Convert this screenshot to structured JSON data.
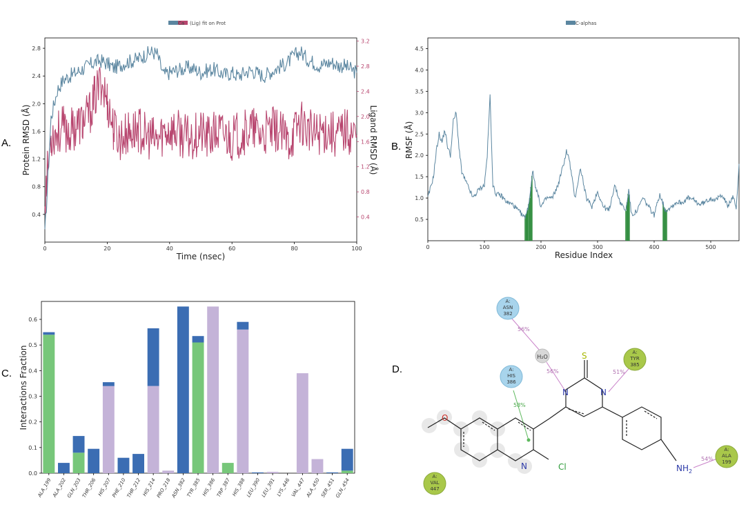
{
  "colors": {
    "protein": "#5b86a0",
    "ligand": "#b8466f",
    "rmsf_line": "#5b86a0",
    "rmsf_contact": "#2e8b3c",
    "hbond": "#77c77a",
    "hydrophobic": "#c4b3d8",
    "water_bridge": "#3b6db3",
    "polar_residue": "#a8d4ec",
    "hydrophobic_residue": "#a9c84a",
    "water": "#d8d8d8",
    "pi_line": "#5cb85c",
    "hbond_arrow": "#c982c9"
  },
  "panel_labels": {
    "a": "A.",
    "b": "B.",
    "c": "C.",
    "d": "D."
  },
  "chart_data": [
    {
      "id": "A",
      "type": "line",
      "legend": [
        "Ca",
        "(Lig) fit on Prot"
      ],
      "xlabel": "Time (nsec)",
      "ylabel": "Protein RMSD (Å)",
      "y2label": "Ligand RMSD (Å)",
      "xlim": [
        0,
        100
      ],
      "ylim": [
        0,
        2.95
      ],
      "y2lim": [
        0,
        3.25
      ],
      "xticks": [
        "0",
        "20",
        "40",
        "60",
        "80",
        "100"
      ],
      "yticks": [
        "0.4",
        "0.8",
        "1.2",
        "1.6",
        "2.0",
        "2.4",
        "2.8"
      ],
      "y2ticks": [
        "0.4",
        "0.8",
        "1.2",
        "1.6",
        "2.0",
        "2.4",
        "2.8",
        "3.2"
      ],
      "series": [
        {
          "name": "Ca",
          "axis": "left",
          "x": [
            0,
            2,
            4,
            6,
            8,
            10,
            12,
            14,
            16,
            18,
            20,
            22,
            24,
            26,
            28,
            30,
            32,
            34,
            36,
            38,
            40,
            42,
            44,
            46,
            48,
            50,
            52,
            54,
            56,
            58,
            60,
            62,
            64,
            66,
            68,
            70,
            72,
            74,
            76,
            78,
            80,
            82,
            84,
            86,
            88,
            90,
            92,
            94,
            96,
            98,
            100
          ],
          "y": [
            0.1,
            1.8,
            2.2,
            2.35,
            2.4,
            2.45,
            2.5,
            2.55,
            2.6,
            2.62,
            2.58,
            2.52,
            2.55,
            2.6,
            2.62,
            2.65,
            2.7,
            2.75,
            2.72,
            2.42,
            2.45,
            2.48,
            2.5,
            2.52,
            2.5,
            2.45,
            2.48,
            2.5,
            2.45,
            2.42,
            2.45,
            2.4,
            2.45,
            2.48,
            2.45,
            2.4,
            2.45,
            2.5,
            2.55,
            2.6,
            2.7,
            2.75,
            2.65,
            2.6,
            2.55,
            2.58,
            2.6,
            2.55,
            2.55,
            2.5,
            2.45
          ]
        },
        {
          "name": "(Lig) fit on Prot",
          "axis": "right",
          "x": [
            0,
            2,
            4,
            6,
            8,
            10,
            12,
            14,
            16,
            18,
            20,
            22,
            24,
            26,
            28,
            30,
            32,
            34,
            36,
            38,
            40,
            42,
            44,
            46,
            48,
            50,
            52,
            54,
            56,
            58,
            60,
            62,
            64,
            66,
            68,
            70,
            72,
            74,
            76,
            78,
            80,
            82,
            84,
            86,
            88,
            90,
            92,
            94,
            96,
            98,
            100
          ],
          "y": [
            0.7,
            1.7,
            1.75,
            1.8,
            1.75,
            1.85,
            1.9,
            2.0,
            2.3,
            2.55,
            2.25,
            1.8,
            1.65,
            1.7,
            1.75,
            1.8,
            1.7,
            1.65,
            1.6,
            1.75,
            1.8,
            1.75,
            1.7,
            1.65,
            1.7,
            1.75,
            1.65,
            1.7,
            1.75,
            1.7,
            1.65,
            1.7,
            1.75,
            1.8,
            1.75,
            1.7,
            1.75,
            1.8,
            1.7,
            1.6,
            1.75,
            1.95,
            1.8,
            1.7,
            1.75,
            1.8,
            1.75,
            1.7,
            1.8,
            1.75,
            1.7
          ]
        }
      ]
    },
    {
      "id": "B",
      "type": "line",
      "legend": [
        "C-alphas"
      ],
      "xlabel": "Residue Index",
      "ylabel": "RMSF (Å)",
      "xlim": [
        0,
        550
      ],
      "ylim": [
        0,
        4.75
      ],
      "xticks": [
        "0",
        "100",
        "200",
        "300",
        "400",
        "500"
      ],
      "yticks": [
        "0.5",
        "1.0",
        "1.5",
        "2.0",
        "2.5",
        "3.0",
        "3.5",
        "4.0",
        "4.5"
      ],
      "series": [
        {
          "name": "C-alphas",
          "x": [
            0,
            10,
            15,
            20,
            25,
            30,
            35,
            40,
            45,
            50,
            55,
            60,
            70,
            80,
            90,
            100,
            105,
            110,
            115,
            120,
            130,
            140,
            150,
            160,
            170,
            175,
            180,
            185,
            190,
            200,
            210,
            220,
            230,
            240,
            245,
            250,
            260,
            270,
            280,
            290,
            300,
            310,
            320,
            330,
            340,
            350,
            355,
            360,
            370,
            380,
            390,
            400,
            410,
            420,
            430,
            440,
            450,
            460,
            470,
            480,
            490,
            500,
            510,
            520,
            530,
            540,
            545,
            550
          ],
          "y": [
            1.0,
            1.5,
            2.1,
            2.5,
            2.3,
            2.6,
            2.2,
            2.0,
            2.8,
            3.0,
            2.2,
            1.6,
            1.3,
            1.0,
            1.2,
            1.3,
            2.0,
            3.4,
            1.3,
            1.1,
            1.05,
            0.9,
            0.85,
            0.7,
            0.55,
            0.65,
            1.0,
            1.65,
            1.3,
            0.8,
            1.0,
            1.0,
            1.3,
            1.8,
            2.1,
            1.9,
            1.0,
            1.7,
            1.0,
            0.8,
            1.15,
            0.8,
            0.7,
            1.3,
            0.9,
            0.7,
            1.2,
            0.6,
            0.7,
            1.0,
            0.8,
            0.6,
            1.1,
            0.7,
            0.8,
            0.9,
            0.9,
            1.0,
            0.95,
            0.85,
            0.9,
            1.0,
            0.95,
            1.1,
            0.8,
            1.05,
            0.7,
            1.8
          ]
        }
      ],
      "contact_residues": [
        172,
        174,
        176,
        178,
        180,
        182,
        184,
        350,
        352,
        354,
        356,
        416,
        418,
        420,
        422
      ]
    },
    {
      "id": "C",
      "type": "bar",
      "ylabel": "Interactions Fraction",
      "ylim": [
        0,
        0.67
      ],
      "yticks": [
        "0.0",
        "0.1",
        "0.2",
        "0.3",
        "0.4",
        "0.5",
        "0.6"
      ],
      "categories": [
        "ALA_199",
        "ALA_202",
        "GLN_203",
        "THR_206",
        "HIS_207",
        "PHE_210",
        "THR_212",
        "HIS_214",
        "PRO_218",
        "ASN_382",
        "TYR_385",
        "HIS_386",
        "TRP_387",
        "HIS_388",
        "LEU_390",
        "LEU_391",
        "LYS_446",
        "VAL_447",
        "ALA_450",
        "SER_451",
        "GLN_454"
      ],
      "series": [
        {
          "name": "H-bonds",
          "values": [
            0.54,
            0,
            0.08,
            0,
            0,
            0,
            0,
            0,
            0,
            0,
            0.51,
            0,
            0.04,
            0,
            0,
            0,
            0,
            0,
            0,
            0,
            0.01
          ]
        },
        {
          "name": "Hydrophobic",
          "values": [
            0,
            0,
            0,
            0,
            0.34,
            0,
            0,
            0.34,
            0.01,
            0,
            0,
            0.65,
            0,
            0.56,
            0,
            0.005,
            0,
            0.39,
            0.055,
            0,
            0
          ]
        },
        {
          "name": "Water bridges",
          "values": [
            0.01,
            0.04,
            0.065,
            0.095,
            0.015,
            0.06,
            0.075,
            0.225,
            0,
            0.65,
            0.025,
            0,
            0,
            0.03,
            0.003,
            0,
            0,
            0,
            0,
            0.003,
            0.085
          ]
        }
      ]
    }
  ],
  "diagram_d": {
    "residues": [
      {
        "chain": "A:",
        "name": "ASN",
        "num": "382",
        "kind": "polar"
      },
      {
        "chain": "A:",
        "name": "HIS",
        "num": "386",
        "kind": "polar"
      },
      {
        "chain": "A:",
        "name": "TYR",
        "num": "385",
        "kind": "hydrophobic"
      },
      {
        "chain": "A:",
        "name": "ALA",
        "num": "199",
        "kind": "hydrophobic"
      },
      {
        "chain": "A:",
        "name": "VAL",
        "num": "447",
        "kind": "hydrophobic"
      }
    ],
    "water_label": "H₂O",
    "percentages": {
      "asn_water": "56%",
      "water_n": "56%",
      "tyr_n": "51%",
      "his_ring": "58%",
      "nh2_ala": "54%"
    },
    "atoms": {
      "o": "O",
      "s": "S",
      "n1": "N",
      "n2": "N",
      "n3": "N",
      "cl": "Cl",
      "nh2": "NH",
      "nh2_sub": "2"
    }
  }
}
